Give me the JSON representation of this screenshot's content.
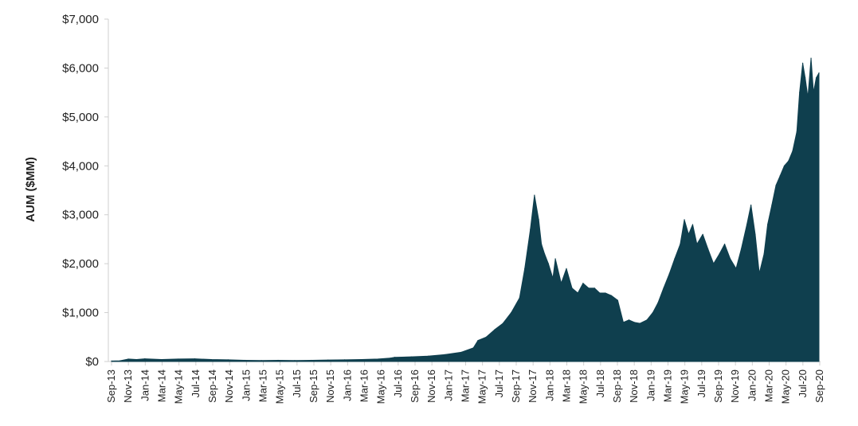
{
  "chart_data": {
    "type": "area",
    "title": "",
    "ylabel": "AUM ($MM)",
    "xlabel": "",
    "ylim": [
      0,
      7000
    ],
    "y_ticks": [
      0,
      1000,
      2000,
      3000,
      4000,
      5000,
      6000,
      7000
    ],
    "y_tick_labels": [
      "$0",
      "$1,000",
      "$2,000",
      "$3,000",
      "$4,000",
      "$5,000",
      "$6,000",
      "$7,000"
    ],
    "x_tick_labels": [
      "Sep-13",
      "Nov-13",
      "Jan-14",
      "Mar-14",
      "May-14",
      "Jul-14",
      "Sep-14",
      "Nov-14",
      "Jan-15",
      "Mar-15",
      "May-15",
      "Jul-15",
      "Sep-15",
      "Nov-15",
      "Jan-16",
      "Mar-16",
      "May-16",
      "Jul-16",
      "Sep-16",
      "Nov-16",
      "Jan-17",
      "Mar-17",
      "May-17",
      "Jul-17",
      "Sep-17",
      "Nov-17",
      "Jan-18",
      "Mar-18",
      "May-18",
      "Jul-18",
      "Sep-18",
      "Nov-18",
      "Jan-19",
      "Mar-19",
      "May-19",
      "Jul-19",
      "Sep-19",
      "Nov-19",
      "Jan-20",
      "Mar-20",
      "May-20",
      "Jul-20",
      "Sep-20"
    ],
    "grid": false,
    "legend": "none",
    "fill_color": "#0f3f4e",
    "series": [
      {
        "x": [
          "2013-09-01",
          "2013-10-01",
          "2013-11-01",
          "2013-12-01",
          "2014-01-01",
          "2014-03-01",
          "2014-05-01",
          "2014-07-01",
          "2014-09-01",
          "2014-11-01",
          "2015-01-01",
          "2015-03-01",
          "2015-05-01",
          "2015-07-01",
          "2015-09-01",
          "2015-11-01",
          "2016-01-01",
          "2016-03-01",
          "2016-05-01",
          "2016-06-15",
          "2016-07-01",
          "2016-09-01",
          "2016-11-01",
          "2017-01-01",
          "2017-03-01",
          "2017-04-15",
          "2017-05-01",
          "2017-06-01",
          "2017-07-01",
          "2017-08-01",
          "2017-09-01",
          "2017-10-01",
          "2017-10-20",
          "2017-11-10",
          "2017-11-25",
          "2017-12-10",
          "2017-12-20",
          "2018-01-01",
          "2018-01-15",
          "2018-02-01",
          "2018-02-10",
          "2018-03-01",
          "2018-03-20",
          "2018-04-10",
          "2018-05-01",
          "2018-05-20",
          "2018-06-10",
          "2018-07-01",
          "2018-07-20",
          "2018-08-10",
          "2018-09-01",
          "2018-09-25",
          "2018-10-15",
          "2018-11-05",
          "2018-11-25",
          "2018-12-15",
          "2019-01-10",
          "2019-02-01",
          "2019-02-20",
          "2019-03-10",
          "2019-04-01",
          "2019-04-20",
          "2019-05-10",
          "2019-05-25",
          "2019-06-10",
          "2019-06-25",
          "2019-07-10",
          "2019-08-01",
          "2019-08-20",
          "2019-09-10",
          "2019-10-01",
          "2019-10-20",
          "2019-11-10",
          "2019-12-01",
          "2019-12-20",
          "2020-01-10",
          "2020-01-25",
          "2020-02-10",
          "2020-02-25",
          "2020-03-12",
          "2020-03-25",
          "2020-04-10",
          "2020-04-25",
          "2020-05-10",
          "2020-05-25",
          "2020-06-10",
          "2020-06-25",
          "2020-07-10",
          "2020-07-20",
          "2020-08-01",
          "2020-08-10",
          "2020-08-20",
          "2020-09-01",
          "2020-09-10",
          "2020-09-20",
          "2020-09-30"
        ],
        "y": [
          10,
          15,
          50,
          40,
          55,
          40,
          50,
          55,
          40,
          35,
          25,
          20,
          25,
          20,
          25,
          30,
          35,
          40,
          50,
          70,
          85,
          95,
          110,
          140,
          190,
          280,
          430,
          500,
          650,
          780,
          1000,
          1300,
          1900,
          2700,
          3400,
          2900,
          2400,
          2200,
          2000,
          1700,
          2100,
          1600,
          1900,
          1500,
          1400,
          1600,
          1500,
          1500,
          1400,
          1400,
          1350,
          1250,
          800,
          850,
          800,
          780,
          850,
          1000,
          1200,
          1500,
          1800,
          2100,
          2400,
          2900,
          2600,
          2800,
          2400,
          2600,
          2300,
          2000,
          2200,
          2400,
          2100,
          1900,
          2300,
          2800,
          3200,
          2600,
          1800,
          2200,
          2800,
          3200,
          3600,
          3800,
          4000,
          4100,
          4300,
          4700,
          5500,
          6100,
          5800,
          5400,
          6200,
          5500,
          5800,
          5900
        ]
      }
    ]
  }
}
